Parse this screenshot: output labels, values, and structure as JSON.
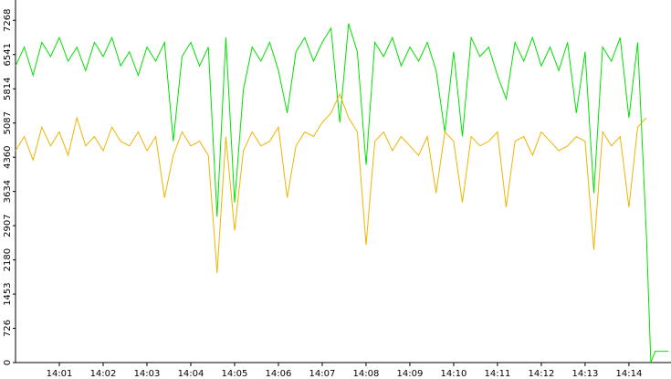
{
  "chart_data": {
    "type": "line",
    "x": [
      0,
      0.2,
      0.4,
      0.6,
      0.8,
      1.0,
      1.2,
      1.4,
      1.6,
      1.8,
      2.0,
      2.2,
      2.4,
      2.6,
      2.8,
      3.0,
      3.2,
      3.4,
      3.6,
      3.8,
      4.0,
      4.2,
      4.4,
      4.6,
      4.8,
      5.0,
      5.2,
      5.4,
      5.6,
      5.8,
      6.0,
      6.2,
      6.4,
      6.6,
      6.8,
      7.0,
      7.2,
      7.4,
      7.6,
      7.8,
      8.0,
      8.2,
      8.4,
      8.6,
      8.8,
      9.0,
      9.2,
      9.4,
      9.6,
      9.8,
      10.0,
      10.2,
      10.4,
      10.6,
      10.8,
      11.0,
      11.2,
      11.4,
      11.6,
      11.8,
      12.0,
      12.2,
      12.4,
      12.6,
      12.8,
      13.0,
      13.2,
      13.4,
      13.6,
      13.8,
      14.0,
      14.2,
      14.4,
      14.5,
      14.6,
      14.9
    ],
    "series": [
      {
        "color": "#00e000",
        "values": [
          6300,
          6700,
          6100,
          6800,
          6500,
          6900,
          6400,
          6700,
          6200,
          6800,
          6500,
          6900,
          6300,
          6600,
          6100,
          6700,
          6400,
          6800,
          4700,
          6500,
          6800,
          6300,
          6700,
          3100,
          6900,
          3400,
          5800,
          6700,
          6400,
          6800,
          6200,
          5300,
          6600,
          6900,
          6400,
          6800,
          7100,
          5100,
          7200,
          6600,
          4200,
          6800,
          6500,
          6900,
          6300,
          6700,
          6400,
          6800,
          6200,
          4900,
          6600,
          4800,
          6900,
          6500,
          6700,
          6100,
          5600,
          6800,
          6400,
          6900,
          6300,
          6700,
          6200,
          6800,
          5300,
          6600,
          3600,
          6700,
          6400,
          6900,
          5200,
          6800,
          2700,
          0,
          240,
          240
        ]
      },
      {
        "color": "#f0b400",
        "values": [
          4500,
          4800,
          4300,
          5000,
          4600,
          4900,
          4400,
          5200,
          4600,
          4800,
          4500,
          5000,
          4700,
          4600,
          4900,
          4500,
          4800,
          3500,
          4400,
          4900,
          4600,
          4700,
          4400,
          1900,
          4800,
          2800,
          4500,
          4900,
          4600,
          4700,
          5000,
          3500,
          4600,
          4900,
          4800,
          5100,
          5300,
          5700,
          5200,
          4900,
          2500,
          4700,
          4900,
          4500,
          4800,
          4600,
          4400,
          4800,
          3600,
          4900,
          4700,
          3400,
          4800,
          4600,
          4700,
          4900,
          3300,
          4700,
          4800,
          4400,
          4900,
          4700,
          4500,
          4600,
          4800,
          4700,
          2400,
          4900,
          4600,
          4800,
          3300,
          5000,
          5200,
          null,
          null,
          null
        ]
      }
    ],
    "xlim": [
      0,
      14.96
    ],
    "xticks": [
      {
        "value": 1,
        "label": "14:01"
      },
      {
        "value": 2,
        "label": "14:02"
      },
      {
        "value": 3,
        "label": "14:03"
      },
      {
        "value": 4,
        "label": "14:04"
      },
      {
        "value": 5,
        "label": "14:05"
      },
      {
        "value": 6,
        "label": "14:06"
      },
      {
        "value": 7,
        "label": "14:07"
      },
      {
        "value": 8,
        "label": "14:08"
      },
      {
        "value": 9,
        "label": "14:09"
      },
      {
        "value": 10,
        "label": "14:10"
      },
      {
        "value": 11,
        "label": "14:11"
      },
      {
        "value": 12,
        "label": "14:12"
      },
      {
        "value": 13,
        "label": "14:13"
      },
      {
        "value": 14,
        "label": "14:14"
      }
    ],
    "ylim": [
      0,
      7700
    ],
    "yticks": [
      0,
      726,
      1453,
      2180,
      2907,
      3634,
      4360,
      5087,
      5814,
      6541,
      7268
    ]
  }
}
